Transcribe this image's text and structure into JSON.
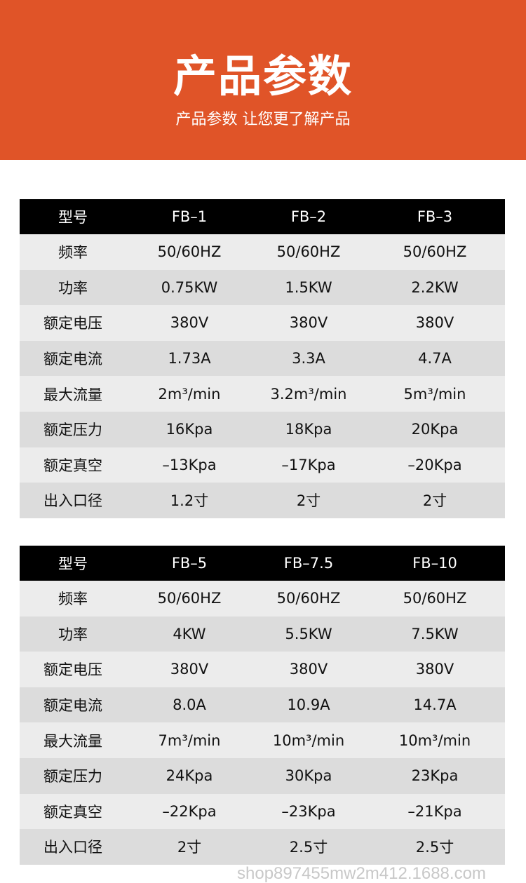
{
  "banner": {
    "title": "产品参数",
    "subtitle": "产品参数 让您更了解产品",
    "color": "#e05428"
  },
  "tables": [
    {
      "header": [
        "型号",
        "FB–1",
        "FB–2",
        "FB–3"
      ],
      "rows": [
        [
          "频率",
          "50/60HZ",
          "50/60HZ",
          "50/60HZ"
        ],
        [
          "功率",
          "0.75KW",
          "1.5KW",
          "2.2KW"
        ],
        [
          "额定电压",
          "380V",
          "380V",
          "380V"
        ],
        [
          "额定电流",
          "1.73A",
          "3.3A",
          "4.7A"
        ],
        [
          "最大流量",
          "2m³/min",
          "3.2m³/min",
          "5m³/min"
        ],
        [
          "额定压力",
          "16Kpa",
          "18Kpa",
          "20Kpa"
        ],
        [
          "额定真空",
          "–13Kpa",
          "–17Kpa",
          "–20Kpa"
        ],
        [
          "出入口径",
          "1.2寸",
          "2寸",
          "2寸"
        ]
      ]
    },
    {
      "header": [
        "型号",
        "FB–5",
        "FB–7.5",
        "FB–10"
      ],
      "rows": [
        [
          "频率",
          "50/60HZ",
          "50/60HZ",
          "50/60HZ"
        ],
        [
          "功率",
          "4KW",
          "5.5KW",
          "7.5KW"
        ],
        [
          "额定电压",
          "380V",
          "380V",
          "380V"
        ],
        [
          "额定电流",
          "8.0A",
          "10.9A",
          "14.7A"
        ],
        [
          "最大流量",
          "7m³/min",
          "10m³/min",
          "10m³/min"
        ],
        [
          "额定压力",
          "24Kpa",
          "30Kpa",
          "23Kpa"
        ],
        [
          "额定真空",
          "–22Kpa",
          "–23Kpa",
          "–21Kpa"
        ],
        [
          "出入口径",
          "2寸",
          "2.5寸",
          "2.5寸"
        ]
      ]
    }
  ],
  "watermark": "shop897455mw2m412.1688.com"
}
